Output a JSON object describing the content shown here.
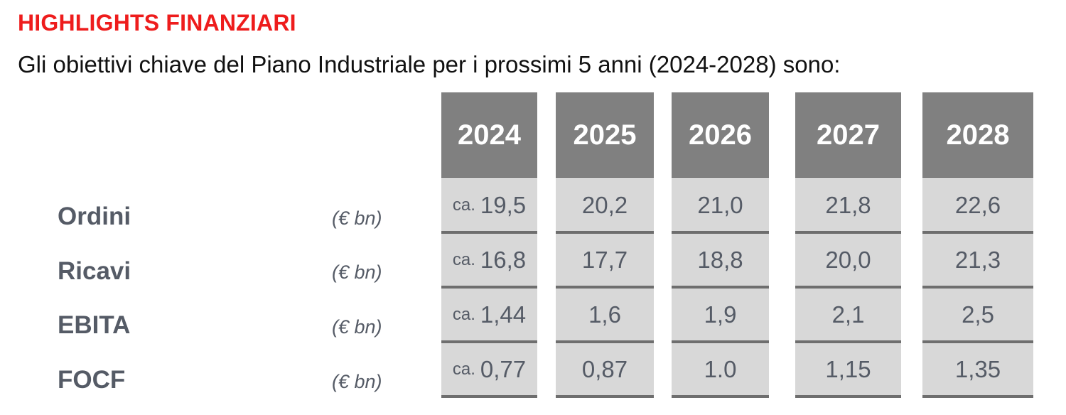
{
  "heading": "HIGHLIGHTS FINANZIARI",
  "intro": "Gli obiettivi chiave del Piano Industriale per i prossimi 5 anni (2024-2028) sono:",
  "table": {
    "years": [
      "2024",
      "2025",
      "2026",
      "2027",
      "2028"
    ],
    "rows": [
      {
        "label": "Ordini",
        "unit": "(€ bn)",
        "cells": [
          {
            "prefix": "ca.",
            "value": "19,5"
          },
          {
            "prefix": "",
            "value": "20,2"
          },
          {
            "prefix": "",
            "value": "21,0"
          },
          {
            "prefix": "",
            "value": "21,8"
          },
          {
            "prefix": "",
            "value": "22,6"
          }
        ]
      },
      {
        "label": "Ricavi",
        "unit": "(€ bn)",
        "cells": [
          {
            "prefix": "ca.",
            "value": "16,8"
          },
          {
            "prefix": "",
            "value": "17,7"
          },
          {
            "prefix": "",
            "value": "18,8"
          },
          {
            "prefix": "",
            "value": "20,0"
          },
          {
            "prefix": "",
            "value": "21,3"
          }
        ]
      },
      {
        "label": "EBITA",
        "unit": "(€ bn)",
        "cells": [
          {
            "prefix": "ca.",
            "value": "1,44"
          },
          {
            "prefix": "",
            "value": "1,6"
          },
          {
            "prefix": "",
            "value": "1,9"
          },
          {
            "prefix": "",
            "value": "2,1"
          },
          {
            "prefix": "",
            "value": "2,5"
          }
        ]
      },
      {
        "label": "FOCF",
        "unit": "(€ bn)",
        "cells": [
          {
            "prefix": "ca.",
            "value": "0,77"
          },
          {
            "prefix": "",
            "value": "0,87"
          },
          {
            "prefix": "",
            "value": "1.0"
          },
          {
            "prefix": "",
            "value": "1,15"
          },
          {
            "prefix": "",
            "value": "1,35"
          }
        ]
      }
    ]
  },
  "colors": {
    "heading": "#ee1c1c",
    "header_fill": "#808080",
    "cell_fill": "#d8d8d8",
    "cell_rule": "#6e6e6e",
    "text_grey": "#555b66"
  }
}
